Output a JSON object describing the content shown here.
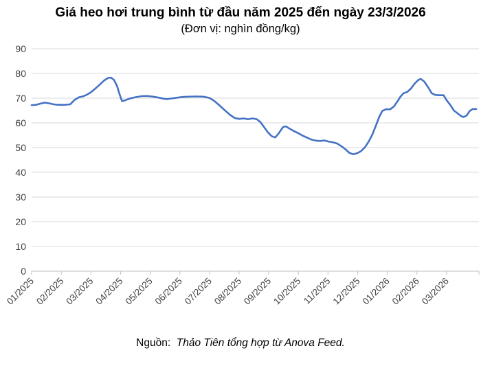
{
  "title": "Giá heo hơi trung bình từ đầu năm 2025 đến ngày 23/3/2026",
  "subtitle": "(Đơn vị: nghìn đồng/kg)",
  "source": {
    "prefix": "Nguồn:",
    "text": "Thảo Tiên tổng hợp từ Anova Feed."
  },
  "chart_data": {
    "type": "line",
    "title": "Giá heo hơi trung bình từ đầu năm 2025 đến ngày 23/3/2026",
    "subtitle": "(Đơn vị: nghìn đồng/kg)",
    "unit": "nghìn đồng/kg",
    "x_tick_labels": [
      "01/2025",
      "02/2025",
      "03/2025",
      "04/2025",
      "05/2025",
      "06/2025",
      "07/2025",
      "08/2025",
      "09/2025",
      "10/2025",
      "11/2025",
      "12/2025",
      "01/2026",
      "02/2026",
      "03/2026"
    ],
    "x_unit": "months since 01/01/2025",
    "x_domain": [
      0,
      15
    ],
    "ylim": [
      0,
      90
    ],
    "y_ticks": [
      0,
      10,
      20,
      30,
      40,
      50,
      60,
      70,
      80,
      90
    ],
    "grid": true,
    "legend": "none",
    "colors": {
      "line": "#4472C4",
      "gridline": "#D9D9D9",
      "axis": "#BFBFBF",
      "tick_label": "#404040",
      "background": "#FFFFFF"
    },
    "series": [
      {
        "name": "Giá heo hơi trung bình (nghìn đồng/kg)",
        "points": [
          [
            0,
            67.2
          ],
          [
            0.15,
            67.3
          ],
          [
            0.3,
            67.8
          ],
          [
            0.45,
            68.2
          ],
          [
            0.6,
            67.9
          ],
          [
            0.75,
            67.5
          ],
          [
            0.9,
            67.3
          ],
          [
            1.1,
            67.3
          ],
          [
            1.3,
            67.5
          ],
          [
            1.45,
            69.3
          ],
          [
            1.6,
            70.4
          ],
          [
            1.72,
            70.7
          ],
          [
            1.85,
            71.3
          ],
          [
            2.0,
            72.4
          ],
          [
            2.15,
            73.9
          ],
          [
            2.3,
            75.5
          ],
          [
            2.45,
            77.2
          ],
          [
            2.58,
            78.2
          ],
          [
            2.68,
            78.3
          ],
          [
            2.78,
            77.4
          ],
          [
            2.88,
            75.0
          ],
          [
            2.97,
            71.5
          ],
          [
            3.05,
            68.8
          ],
          [
            3.15,
            69.1
          ],
          [
            3.3,
            69.8
          ],
          [
            3.5,
            70.4
          ],
          [
            3.7,
            70.8
          ],
          [
            3.9,
            70.9
          ],
          [
            4.1,
            70.6
          ],
          [
            4.3,
            70.2
          ],
          [
            4.45,
            69.8
          ],
          [
            4.58,
            69.6
          ],
          [
            4.72,
            69.9
          ],
          [
            4.9,
            70.2
          ],
          [
            5.1,
            70.5
          ],
          [
            5.3,
            70.6
          ],
          [
            5.55,
            70.7
          ],
          [
            5.8,
            70.6
          ],
          [
            6.0,
            70.1
          ],
          [
            6.15,
            69.0
          ],
          [
            6.3,
            67.5
          ],
          [
            6.5,
            65.3
          ],
          [
            6.7,
            63.2
          ],
          [
            6.85,
            62.0
          ],
          [
            7.0,
            61.6
          ],
          [
            7.15,
            61.8
          ],
          [
            7.3,
            61.5
          ],
          [
            7.45,
            61.8
          ],
          [
            7.6,
            61.5
          ],
          [
            7.72,
            60.3
          ],
          [
            7.85,
            58.2
          ],
          [
            7.97,
            56.2
          ],
          [
            8.1,
            54.6
          ],
          [
            8.22,
            54.1
          ],
          [
            8.35,
            56.0
          ],
          [
            8.48,
            58.3
          ],
          [
            8.58,
            58.6
          ],
          [
            8.7,
            57.7
          ],
          [
            8.85,
            56.7
          ],
          [
            9.0,
            55.8
          ],
          [
            9.15,
            54.8
          ],
          [
            9.3,
            54.0
          ],
          [
            9.45,
            53.2
          ],
          [
            9.6,
            52.8
          ],
          [
            9.75,
            52.7
          ],
          [
            9.88,
            52.9
          ],
          [
            10.0,
            52.5
          ],
          [
            10.15,
            52.2
          ],
          [
            10.3,
            51.7
          ],
          [
            10.45,
            50.6
          ],
          [
            10.6,
            49.2
          ],
          [
            10.72,
            47.9
          ],
          [
            10.85,
            47.3
          ],
          [
            11.0,
            47.8
          ],
          [
            11.12,
            48.6
          ],
          [
            11.25,
            50.2
          ],
          [
            11.38,
            52.6
          ],
          [
            11.5,
            55.4
          ],
          [
            11.62,
            59.0
          ],
          [
            11.73,
            62.5
          ],
          [
            11.83,
            64.8
          ],
          [
            11.95,
            65.5
          ],
          [
            12.1,
            65.5
          ],
          [
            12.22,
            66.6
          ],
          [
            12.35,
            68.8
          ],
          [
            12.45,
            70.7
          ],
          [
            12.55,
            72.0
          ],
          [
            12.67,
            72.5
          ],
          [
            12.8,
            73.9
          ],
          [
            12.93,
            76.0
          ],
          [
            13.05,
            77.4
          ],
          [
            13.13,
            77.8
          ],
          [
            13.25,
            76.7
          ],
          [
            13.38,
            74.4
          ],
          [
            13.5,
            72.0
          ],
          [
            13.62,
            71.3
          ],
          [
            13.78,
            71.2
          ],
          [
            13.9,
            71.2
          ],
          [
            14.0,
            69.2
          ],
          [
            14.12,
            67.4
          ],
          [
            14.25,
            65.0
          ],
          [
            14.4,
            63.6
          ],
          [
            14.5,
            62.7
          ],
          [
            14.57,
            62.4
          ],
          [
            14.67,
            62.9
          ],
          [
            14.78,
            64.8
          ],
          [
            14.88,
            65.6
          ],
          [
            15.0,
            65.6
          ]
        ]
      }
    ]
  }
}
